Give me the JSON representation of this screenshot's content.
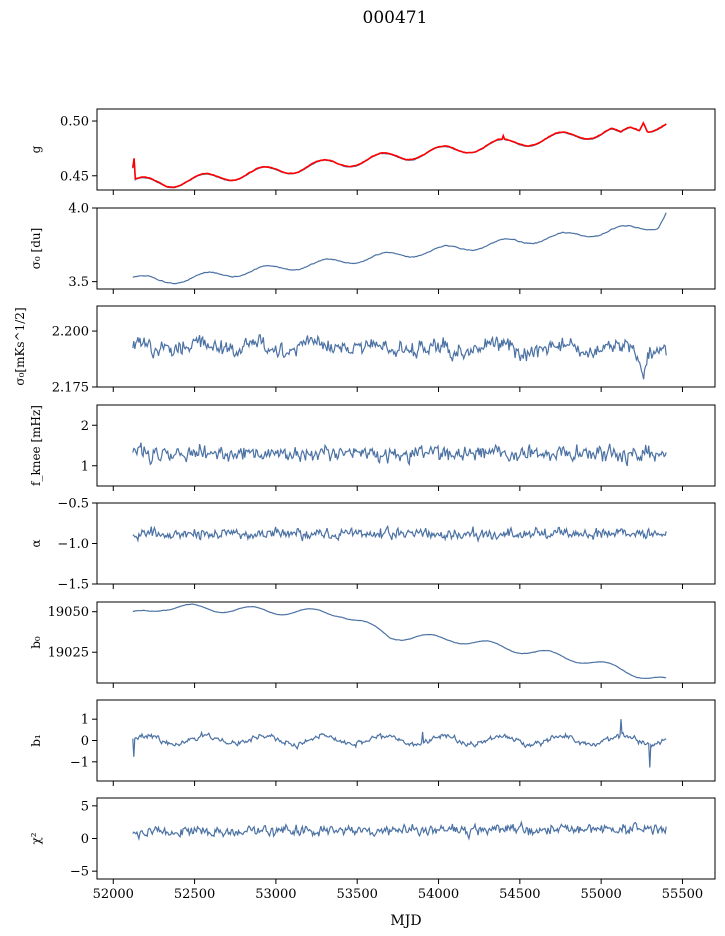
{
  "figure": {
    "title": "000471",
    "xlabel": "MJD",
    "xlim": [
      51900,
      55700
    ],
    "xticks": [
      52000,
      52500,
      53000,
      53500,
      54000,
      54500,
      55000,
      55500
    ],
    "xtick_labels": [
      "52000",
      "52500",
      "53000",
      "53500",
      "54000",
      "54500",
      "55000",
      "55500"
    ],
    "line_color": "#4c72a4",
    "overlay_color": "#ff0000"
  },
  "chart_data": [
    {
      "type": "line",
      "name": "g",
      "ylabel": "g",
      "ylim": [
        0.437,
        0.511
      ],
      "yticks": [
        0.45,
        0.5
      ],
      "ytick_labels": [
        "0.45",
        "0.50"
      ],
      "x_range": [
        52120,
        55400
      ],
      "trend": [
        [
          52120,
          0.444
        ],
        [
          52330,
          0.443
        ],
        [
          55400,
          0.496
        ]
      ],
      "oscillation": {
        "period": 365.25,
        "amplitude": 0.0045,
        "phase_deg": 20
      },
      "noise": 0.0003,
      "events": [
        {
          "x": 52125,
          "dy": 0.03,
          "width": 8
        },
        {
          "x": 54400,
          "dy": 0.005,
          "width": 6
        },
        {
          "x": 55120,
          "dy": -0.006,
          "width": 60
        },
        {
          "x": 55260,
          "dy": 0.008,
          "width": 25
        }
      ],
      "overlay": {
        "name": "red_fit",
        "present": true
      }
    },
    {
      "type": "line",
      "name": "sigma0_du",
      "ylabel": "σ₀ [du]",
      "ylim": [
        3.45,
        4.0
      ],
      "yticks": [
        3.5,
        4.0
      ],
      "ytick_labels": [
        "3.5",
        "4.0"
      ],
      "x_range": [
        52120,
        55400
      ],
      "trend": [
        [
          52120,
          3.53
        ],
        [
          52280,
          3.5
        ],
        [
          55350,
          3.88
        ],
        [
          55400,
          3.97
        ]
      ],
      "oscillation": {
        "period": 365.25,
        "amplitude": 0.025,
        "phase_deg": 0
      },
      "noise": 0.003
    },
    {
      "type": "line",
      "name": "sigma0_mKs",
      "ylabel": "σ₀[mKs^1/2]",
      "ylim": [
        2.175,
        2.2112
      ],
      "yticks": [
        2.175,
        2.2
      ],
      "ytick_labels": [
        "2.175",
        "2.200"
      ],
      "x_range": [
        52120,
        55400
      ],
      "trend": [
        [
          52120,
          2.193
        ],
        [
          55400,
          2.192
        ]
      ],
      "oscillation": {
        "period": 365.25,
        "amplitude": 0.0015,
        "phase_deg": 45
      },
      "noise": 0.0035,
      "events": [
        {
          "x": 55260,
          "dy": -0.012,
          "width": 40
        }
      ]
    },
    {
      "type": "line",
      "name": "fknee",
      "ylabel": "f_knee [mHz]",
      "ylim": [
        0.5,
        2.5
      ],
      "yticks": [
        1,
        2
      ],
      "ytick_labels": [
        "1",
        "2"
      ],
      "x_range": [
        52120,
        55400
      ],
      "trend": [
        [
          52120,
          1.3
        ],
        [
          55400,
          1.3
        ]
      ],
      "noise": 0.18
    },
    {
      "type": "line",
      "name": "alpha",
      "ylabel": "α",
      "ylim": [
        -1.5,
        -0.5
      ],
      "yticks": [
        -1.5,
        -1.0,
        -0.5
      ],
      "ytick_labels": [
        "−1.5",
        "−1.0",
        "−0.5"
      ],
      "x_range": [
        52120,
        55400
      ],
      "trend": [
        [
          52120,
          -0.88
        ],
        [
          55400,
          -0.88
        ]
      ],
      "noise": 0.06
    },
    {
      "type": "line",
      "name": "b0",
      "ylabel": "b₀",
      "ylim": [
        19006,
        19056
      ],
      "yticks": [
        19025,
        19050
      ],
      "ytick_labels": [
        "19025",
        "19050"
      ],
      "x_range": [
        52120,
        55400
      ],
      "trend": [
        [
          52120,
          19048
        ],
        [
          52300,
          19053
        ],
        [
          53400,
          19049
        ],
        [
          53700,
          19035
        ],
        [
          54100,
          19033
        ],
        [
          54900,
          19020
        ],
        [
          55400,
          19007
        ]
      ],
      "oscillation": {
        "period": 365.25,
        "amplitude": 2.2,
        "phase_deg": 90
      },
      "noise": 0.15
    },
    {
      "type": "line",
      "name": "b1",
      "ylabel": "b₁",
      "ylim": [
        -1.9,
        1.9
      ],
      "yticks": [
        -1,
        0,
        1
      ],
      "ytick_labels": [
        "−1",
        "0",
        "1"
      ],
      "x_range": [
        52120,
        55400
      ],
      "trend": [
        [
          52120,
          0.05
        ],
        [
          55400,
          0.0
        ]
      ],
      "oscillation": {
        "period": 365.25,
        "amplitude": 0.2,
        "phase_deg": 10
      },
      "noise": 0.12,
      "events": [
        {
          "x": 52125,
          "dy": -1.3,
          "width": 4
        },
        {
          "x": 53640,
          "dy": 0.6,
          "width": 4
        },
        {
          "x": 53900,
          "dy": 0.9,
          "width": 4
        },
        {
          "x": 55120,
          "dy": 1.4,
          "width": 4
        },
        {
          "x": 55300,
          "dy": -1.5,
          "width": 4
        }
      ]
    },
    {
      "type": "line",
      "name": "chi2",
      "ylabel": "χ²",
      "ylim": [
        -6.2,
        6.2
      ],
      "yticks": [
        -5,
        0,
        5
      ],
      "ytick_labels": [
        "−5",
        "0",
        "5"
      ],
      "x_range": [
        52120,
        55400
      ],
      "trend": [
        [
          52120,
          1.0
        ],
        [
          55400,
          1.5
        ]
      ],
      "noise": 0.75
    }
  ]
}
